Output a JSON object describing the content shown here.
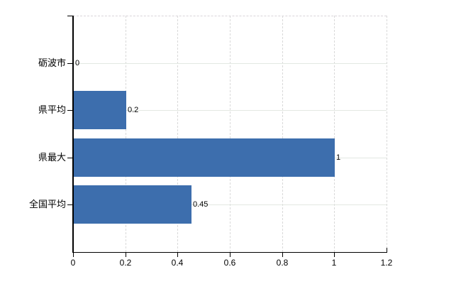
{
  "chart_data": {
    "type": "bar",
    "orientation": "horizontal",
    "title": "",
    "categories": [
      "砺波市",
      "県平均",
      "県最大",
      "全国平均"
    ],
    "values": [
      0,
      0.2,
      1,
      0.45
    ],
    "value_labels": [
      "0",
      "0.2",
      "1",
      "0.45"
    ],
    "xlim": [
      0,
      1.2
    ],
    "x_ticks": [
      0,
      0.2,
      0.4,
      0.6,
      0.8,
      1,
      1.2
    ],
    "x_tick_labels": [
      "0",
      "0.2",
      "0.4",
      "0.6",
      "0.8",
      "1",
      "1.2"
    ],
    "legend": false,
    "grid": {
      "vertical": "dashed",
      "horizontal": "solid"
    },
    "colors": {
      "bar": "#3d6ead",
      "axis": "#000000",
      "grid_vertical": "#d9d9d9",
      "grid_horizontal": "#e3e8e2",
      "border_dashed": "#d9d4da",
      "background": "#ffffff",
      "text": "#000000"
    }
  }
}
